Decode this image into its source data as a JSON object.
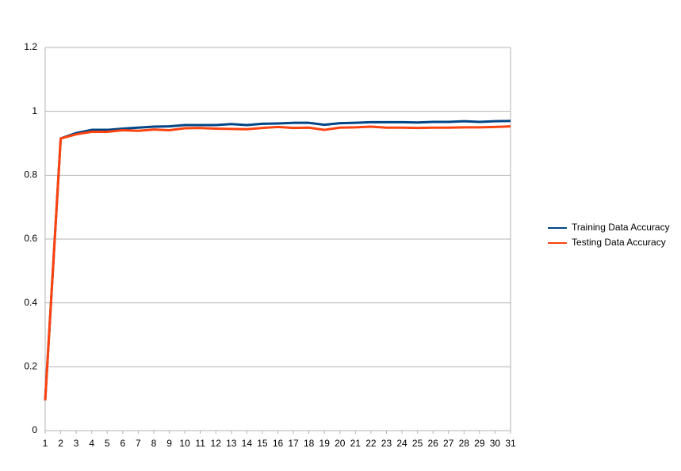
{
  "chart_data": {
    "type": "line",
    "categories": [
      1,
      2,
      3,
      4,
      5,
      6,
      7,
      8,
      9,
      10,
      11,
      12,
      13,
      14,
      15,
      16,
      17,
      18,
      19,
      20,
      21,
      22,
      23,
      24,
      25,
      26,
      27,
      28,
      29,
      30,
      31
    ],
    "series": [
      {
        "name": "Training Data Accuracy",
        "color": "#004586",
        "values": [
          0.095,
          0.915,
          0.932,
          0.942,
          0.942,
          0.946,
          0.949,
          0.952,
          0.953,
          0.957,
          0.957,
          0.957,
          0.96,
          0.957,
          0.961,
          0.962,
          0.964,
          0.964,
          0.958,
          0.963,
          0.964,
          0.966,
          0.966,
          0.966,
          0.965,
          0.967,
          0.967,
          0.969,
          0.967,
          0.969,
          0.97
        ]
      },
      {
        "name": "Testing Data Accuracy",
        "color": "#ff420e",
        "values": [
          0.095,
          0.915,
          0.928,
          0.936,
          0.936,
          0.941,
          0.939,
          0.943,
          0.941,
          0.947,
          0.948,
          0.946,
          0.945,
          0.944,
          0.948,
          0.951,
          0.948,
          0.949,
          0.942,
          0.949,
          0.95,
          0.952,
          0.949,
          0.949,
          0.948,
          0.949,
          0.949,
          0.95,
          0.95,
          0.951,
          0.953
        ]
      }
    ],
    "ylim": [
      0,
      1.2
    ],
    "yticks": [
      0,
      0.2,
      0.4,
      0.6,
      0.8,
      1,
      1.2
    ],
    "grid": true,
    "legend": "right"
  }
}
